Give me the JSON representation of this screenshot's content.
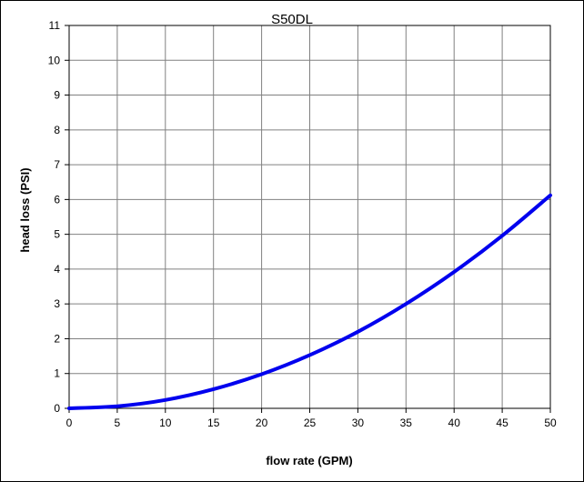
{
  "chart_data": {
    "type": "line",
    "title": "S50DL",
    "xlabel": "flow rate (GPM)",
    "ylabel": "head loss (PSI)",
    "xlim": [
      0,
      50
    ],
    "ylim": [
      0,
      11
    ],
    "x_ticks": [
      "0",
      "5",
      "10",
      "15",
      "20",
      "25",
      "30",
      "35",
      "40",
      "45",
      "50"
    ],
    "y_ticks": [
      "0",
      "1",
      "2",
      "3",
      "4",
      "5",
      "6",
      "7",
      "8",
      "9",
      "10",
      "11"
    ],
    "grid": true,
    "legend": "none",
    "series": [
      {
        "color": "#0000ee",
        "x": [
          0,
          5,
          10,
          15,
          20,
          25,
          30,
          35,
          40,
          45,
          50
        ],
        "y": [
          0,
          0.06,
          0.24,
          0.55,
          0.98,
          1.53,
          2.2,
          3.0,
          3.92,
          4.96,
          6.12
        ]
      }
    ]
  }
}
